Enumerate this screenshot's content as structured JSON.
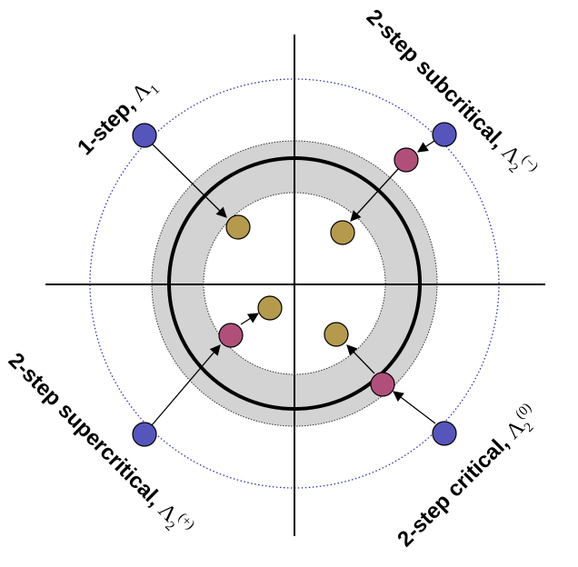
{
  "colors": {
    "axis": "#000000",
    "unit_circle": "#000000",
    "annulus_fill": "#d3d3d3",
    "outer_dotted": "#3333aa",
    "blue_node": "#5555bb",
    "magenta_node": "#b0507a",
    "olive_node": "#b59a4e"
  },
  "labels": {
    "one_step": {
      "text": "1-step",
      "sep": ", ",
      "symbol": "Λ",
      "sub": "1",
      "sup": ""
    },
    "subcritical": {
      "text": "2-step subcritical",
      "sep": ", ",
      "symbol": "Λ",
      "sub": "2",
      "sup": "(−)"
    },
    "supercritical": {
      "text": "2-step supercritical",
      "sep": ", ",
      "symbol": "Λ",
      "sub": "2",
      "sup": "(+)"
    },
    "critical": {
      "text": "2-step critical",
      "sep": ", ",
      "symbol": "Λ",
      "sub": "2",
      "sup": "(0)"
    }
  }
}
